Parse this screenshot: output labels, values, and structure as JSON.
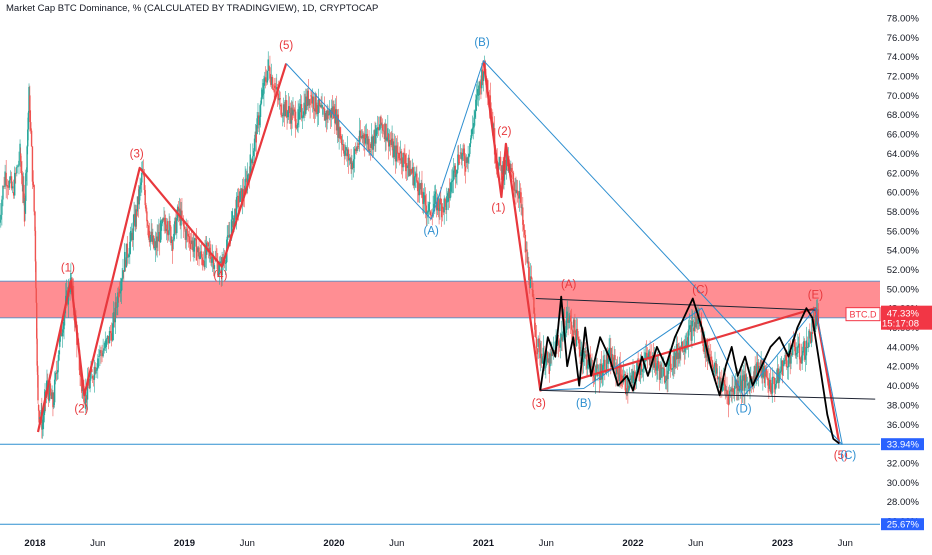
{
  "header": {
    "title": "Market Cap BTC Dominance, % (CALCULATED BY TRADINGVIEW), 1D, CRYPTOCAP"
  },
  "colors": {
    "wave_red": "#e8383d",
    "wave_blue": "#2e8fd0",
    "zone_fill": "#ff7a80",
    "candle_up": "#26a69a",
    "candle_down": "#ef5350",
    "price_line": "#000000",
    "last_price_badge": "#f23645",
    "level_badge": "#2962ff"
  },
  "chart_data": {
    "type": "line",
    "title": "Market Cap BTC Dominance, % (CALCULATED BY TRADINGVIEW), 1D, CRYPTOCAP",
    "symbol": "BTC.D",
    "last_value": "47.33%",
    "countdown": "15:17:08",
    "ylim": [
      24,
      79
    ],
    "y_ticks": [
      "78.00%",
      "76.00%",
      "74.00%",
      "72.00%",
      "70.00%",
      "68.00%",
      "66.00%",
      "64.00%",
      "62.00%",
      "60.00%",
      "58.00%",
      "56.00%",
      "54.00%",
      "52.00%",
      "50.00%",
      "48.00%",
      "46.00%",
      "44.00%",
      "42.00%",
      "40.00%",
      "38.00%",
      "36.00%",
      "34.00%",
      "32.00%",
      "30.00%",
      "28.00%",
      "26.00%"
    ],
    "x_ticks": [
      {
        "label": "2018",
        "t": 2018.0
      },
      {
        "label": "Jun",
        "t": 2018.42
      },
      {
        "label": "2019",
        "t": 2019.0
      },
      {
        "label": "Jun",
        "t": 2019.42
      },
      {
        "label": "2020",
        "t": 2020.0
      },
      {
        "label": "Jun",
        "t": 2020.42
      },
      {
        "label": "2021",
        "t": 2021.0
      },
      {
        "label": "Jun",
        "t": 2021.42
      },
      {
        "label": "2022",
        "t": 2022.0
      },
      {
        "label": "Jun",
        "t": 2022.42
      },
      {
        "label": "2023",
        "t": 2023.0
      },
      {
        "label": "Jun",
        "t": 2023.42
      }
    ],
    "grid": false,
    "zone": {
      "from": 47.0,
      "to": 50.8
    },
    "levels": [
      {
        "value": 33.94,
        "label": "33.94%"
      },
      {
        "value": 25.67,
        "label": "25.67%"
      }
    ],
    "series": [
      {
        "kind": "candles",
        "points": [
          [
            2017.75,
            56
          ],
          [
            2017.8,
            62
          ],
          [
            2017.85,
            60
          ],
          [
            2017.9,
            64
          ],
          [
            2017.93,
            58
          ],
          [
            2017.96,
            70
          ],
          [
            2018.0,
            56
          ],
          [
            2018.02,
            38
          ],
          [
            2018.05,
            36
          ],
          [
            2018.08,
            40
          ],
          [
            2018.12,
            38
          ],
          [
            2018.16,
            44
          ],
          [
            2018.2,
            48
          ],
          [
            2018.24,
            51
          ],
          [
            2018.28,
            45
          ],
          [
            2018.31,
            40
          ],
          [
            2018.34,
            39
          ],
          [
            2018.38,
            41
          ],
          [
            2018.42,
            43
          ],
          [
            2018.47,
            44
          ],
          [
            2018.52,
            46
          ],
          [
            2018.56,
            50
          ],
          [
            2018.6,
            53
          ],
          [
            2018.64,
            55
          ],
          [
            2018.68,
            58
          ],
          [
            2018.72,
            62
          ],
          [
            2018.76,
            56
          ],
          [
            2018.8,
            54
          ],
          [
            2018.84,
            56
          ],
          [
            2018.88,
            57
          ],
          [
            2018.92,
            55
          ],
          [
            2018.96,
            58
          ],
          [
            2019.0,
            56
          ],
          [
            2019.04,
            55
          ],
          [
            2019.08,
            54
          ],
          [
            2019.12,
            53
          ],
          [
            2019.16,
            54
          ],
          [
            2019.2,
            53
          ],
          [
            2019.24,
            52
          ],
          [
            2019.28,
            54
          ],
          [
            2019.32,
            57
          ],
          [
            2019.36,
            59
          ],
          [
            2019.4,
            60
          ],
          [
            2019.44,
            63
          ],
          [
            2019.48,
            66
          ],
          [
            2019.52,
            70
          ],
          [
            2019.56,
            73
          ],
          [
            2019.6,
            71
          ],
          [
            2019.64,
            69
          ],
          [
            2019.68,
            68.5
          ],
          [
            2019.72,
            68
          ],
          [
            2019.76,
            67.5
          ],
          [
            2019.8,
            69
          ],
          [
            2019.84,
            70
          ],
          [
            2019.88,
            69
          ],
          [
            2019.92,
            68
          ],
          [
            2019.96,
            68
          ],
          [
            2020.0,
            68.5
          ],
          [
            2020.04,
            66
          ],
          [
            2020.08,
            64
          ],
          [
            2020.12,
            63
          ],
          [
            2020.16,
            65
          ],
          [
            2020.2,
            66
          ],
          [
            2020.24,
            65
          ],
          [
            2020.28,
            66
          ],
          [
            2020.32,
            67
          ],
          [
            2020.36,
            66
          ],
          [
            2020.4,
            64
          ],
          [
            2020.44,
            64
          ],
          [
            2020.48,
            63
          ],
          [
            2020.52,
            62
          ],
          [
            2020.56,
            61
          ],
          [
            2020.6,
            59
          ],
          [
            2020.64,
            58
          ],
          [
            2020.68,
            59
          ],
          [
            2020.72,
            58.5
          ],
          [
            2020.76,
            59
          ],
          [
            2020.8,
            62
          ],
          [
            2020.84,
            64
          ],
          [
            2020.88,
            63
          ],
          [
            2020.92,
            66
          ],
          [
            2020.96,
            70
          ],
          [
            2021.0,
            73
          ],
          [
            2021.04,
            70
          ],
          [
            2021.08,
            64
          ],
          [
            2021.12,
            62
          ],
          [
            2021.16,
            63
          ],
          [
            2021.2,
            61
          ],
          [
            2021.24,
            60
          ],
          [
            2021.28,
            54
          ],
          [
            2021.32,
            50
          ],
          [
            2021.36,
            44
          ],
          [
            2021.4,
            43
          ],
          [
            2021.44,
            42
          ],
          [
            2021.48,
            44
          ],
          [
            2021.52,
            45
          ],
          [
            2021.56,
            47
          ],
          [
            2021.6,
            46
          ],
          [
            2021.64,
            44
          ],
          [
            2021.68,
            43
          ],
          [
            2021.72,
            42
          ],
          [
            2021.76,
            41
          ],
          [
            2021.8,
            42
          ],
          [
            2021.84,
            43
          ],
          [
            2021.88,
            42
          ],
          [
            2021.92,
            41
          ],
          [
            2021.96,
            40
          ],
          [
            2022.0,
            40.5
          ],
          [
            2022.04,
            42
          ],
          [
            2022.08,
            42.5
          ],
          [
            2022.12,
            43
          ],
          [
            2022.16,
            42
          ],
          [
            2022.2,
            41
          ],
          [
            2022.24,
            42
          ],
          [
            2022.28,
            43
          ],
          [
            2022.32,
            44
          ],
          [
            2022.36,
            45
          ],
          [
            2022.4,
            46
          ],
          [
            2022.44,
            47
          ],
          [
            2022.48,
            44
          ],
          [
            2022.52,
            43
          ],
          [
            2022.56,
            41
          ],
          [
            2022.6,
            40
          ],
          [
            2022.64,
            39
          ],
          [
            2022.68,
            40
          ],
          [
            2022.72,
            40.5
          ],
          [
            2022.76,
            40
          ],
          [
            2022.8,
            41
          ],
          [
            2022.84,
            42
          ],
          [
            2022.88,
            41
          ],
          [
            2022.92,
            40
          ],
          [
            2022.96,
            40.5
          ],
          [
            2023.0,
            42
          ],
          [
            2023.04,
            43
          ],
          [
            2023.08,
            44
          ],
          [
            2023.12,
            43
          ],
          [
            2023.16,
            44
          ],
          [
            2023.2,
            46
          ],
          [
            2023.24,
            47
          ]
        ]
      },
      {
        "kind": "price-line",
        "points": [
          [
            2021.38,
            39.5
          ],
          [
            2021.43,
            45
          ],
          [
            2021.48,
            43
          ],
          [
            2021.52,
            49.2
          ],
          [
            2021.56,
            42
          ],
          [
            2021.6,
            45
          ],
          [
            2021.64,
            40
          ],
          [
            2021.68,
            46
          ],
          [
            2021.72,
            41
          ],
          [
            2021.78,
            45
          ],
          [
            2021.84,
            43
          ],
          [
            2021.9,
            40
          ],
          [
            2021.96,
            41
          ],
          [
            2022.0,
            39.5
          ],
          [
            2022.06,
            43
          ],
          [
            2022.1,
            41
          ],
          [
            2022.16,
            44
          ],
          [
            2022.22,
            42
          ],
          [
            2022.28,
            45
          ],
          [
            2022.34,
            47
          ],
          [
            2022.4,
            49
          ],
          [
            2022.46,
            46
          ],
          [
            2022.52,
            42
          ],
          [
            2022.58,
            39
          ],
          [
            2022.62,
            42
          ],
          [
            2022.66,
            44
          ],
          [
            2022.7,
            41
          ],
          [
            2022.75,
            43
          ],
          [
            2022.8,
            40
          ],
          [
            2022.86,
            42
          ],
          [
            2022.92,
            44
          ],
          [
            2022.98,
            45
          ],
          [
            2023.04,
            43
          ],
          [
            2023.1,
            46
          ],
          [
            2023.16,
            48
          ],
          [
            2023.2,
            47
          ],
          [
            2023.23,
            44
          ],
          [
            2023.26,
            41
          ],
          [
            2023.3,
            37
          ],
          [
            2023.34,
            34.5
          ],
          [
            2023.38,
            34
          ]
        ]
      }
    ],
    "waves": [
      {
        "color": "red",
        "points": [
          [
            2018.02,
            35.2
          ],
          [
            2018.24,
            50.8
          ],
          [
            2018.33,
            39
          ],
          [
            2018.7,
            62.5
          ],
          [
            2019.25,
            52.3
          ],
          [
            2019.68,
            73.3
          ]
        ]
      },
      {
        "color": "red",
        "points": [
          [
            2021.0,
            73.6
          ],
          [
            2021.12,
            59.5
          ],
          [
            2021.15,
            65
          ],
          [
            2021.38,
            39.5
          ],
          [
            2023.22,
            48
          ],
          [
            2023.38,
            34
          ]
        ]
      },
      {
        "color": "blue",
        "points": [
          [
            2019.68,
            73.3
          ],
          [
            2020.65,
            57.2
          ],
          [
            2021.0,
            73.6
          ],
          [
            2023.4,
            33.9
          ]
        ]
      },
      {
        "color": "blue",
        "points": [
          [
            2021.38,
            39.5
          ],
          [
            2021.67,
            39.7
          ],
          [
            2022.46,
            48
          ],
          [
            2022.74,
            38.9
          ],
          [
            2023.22,
            48
          ],
          [
            2023.4,
            33.9
          ]
        ]
      },
      {
        "color": "dark",
        "points": [
          [
            2021.35,
            49
          ],
          [
            2023.22,
            47.8
          ]
        ]
      },
      {
        "color": "dark",
        "points": [
          [
            2021.38,
            39.5
          ],
          [
            2023.62,
            38.6
          ]
        ]
      }
    ],
    "annotations": [
      {
        "text": "(1)",
        "t": 2018.22,
        "v": 51.8,
        "color": "red"
      },
      {
        "text": "(2)",
        "t": 2018.31,
        "v": 37.2,
        "color": "red"
      },
      {
        "text": "(3)",
        "t": 2018.68,
        "v": 63.6,
        "color": "red"
      },
      {
        "text": "(4)",
        "t": 2019.24,
        "v": 51,
        "color": "red"
      },
      {
        "text": "(5)",
        "t": 2019.68,
        "v": 74.8,
        "color": "red"
      },
      {
        "text": "(B)",
        "t": 2020.99,
        "v": 75.1,
        "color": "blue"
      },
      {
        "text": "(A)",
        "t": 2020.65,
        "v": 55.6,
        "color": "blue"
      },
      {
        "text": "(2)",
        "t": 2021.14,
        "v": 65.9,
        "color": "red"
      },
      {
        "text": "(1)",
        "t": 2021.1,
        "v": 58,
        "color": "red"
      },
      {
        "text": "(A)",
        "t": 2021.57,
        "v": 50.1,
        "color": "red"
      },
      {
        "text": "(C)",
        "t": 2022.45,
        "v": 49.5,
        "color": "red"
      },
      {
        "text": "(E)",
        "t": 2023.22,
        "v": 49,
        "color": "red"
      },
      {
        "text": "(3)",
        "t": 2021.37,
        "v": 37.8,
        "color": "red"
      },
      {
        "text": "(B)",
        "t": 2021.67,
        "v": 37.8,
        "color": "blue"
      },
      {
        "text": "(D)",
        "t": 2022.74,
        "v": 37.2,
        "color": "blue"
      },
      {
        "text": "(5)",
        "t": 2023.39,
        "v": 32.4,
        "color": "red"
      },
      {
        "text": "(C)",
        "t": 2023.44,
        "v": 32.4,
        "color": "blue"
      }
    ]
  }
}
